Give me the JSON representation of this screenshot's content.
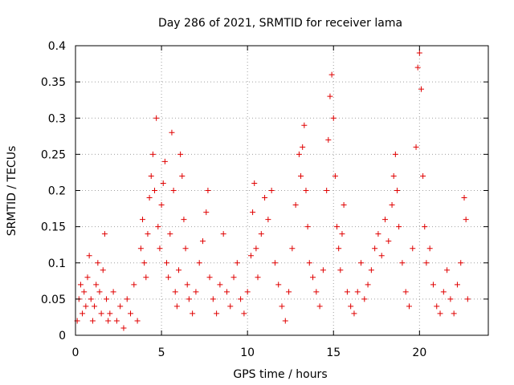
{
  "chart_data": {
    "type": "scatter",
    "title": "Day 286 of 2021, SRMTID for receiver lama",
    "xlabel": "GPS time / hours",
    "ylabel": "SRMTID / TECUs",
    "xlim": [
      0,
      24
    ],
    "ylim": [
      0,
      0.4
    ],
    "xticks": [
      0,
      5,
      10,
      15,
      20
    ],
    "xtick_labels": [
      "0",
      "5",
      "10",
      "15",
      "20"
    ],
    "yticks": [
      0,
      0.05,
      0.1,
      0.15,
      0.2,
      0.25,
      0.3,
      0.35,
      0.4
    ],
    "ytick_labels": [
      "0",
      "0.05",
      "0.1",
      "0.15",
      "0.2",
      "0.25",
      "0.3",
      "0.35",
      "0.4"
    ],
    "grid": true,
    "marker": "+",
    "color": "#e00000",
    "series": [
      {
        "name": "SRMTID",
        "points": [
          [
            0.1,
            0.02
          ],
          [
            0.2,
            0.05
          ],
          [
            0.3,
            0.07
          ],
          [
            0.4,
            0.03
          ],
          [
            0.5,
            0.06
          ],
          [
            0.6,
            0.04
          ],
          [
            0.7,
            0.08
          ],
          [
            0.8,
            0.11
          ],
          [
            0.9,
            0.05
          ],
          [
            1.0,
            0.02
          ],
          [
            1.1,
            0.04
          ],
          [
            1.2,
            0.07
          ],
          [
            1.3,
            0.1
          ],
          [
            1.4,
            0.06
          ],
          [
            1.5,
            0.03
          ],
          [
            1.6,
            0.09
          ],
          [
            1.7,
            0.14
          ],
          [
            1.8,
            0.05
          ],
          [
            1.9,
            0.02
          ],
          [
            2.0,
            0.03
          ],
          [
            2.2,
            0.06
          ],
          [
            2.4,
            0.02
          ],
          [
            2.6,
            0.04
          ],
          [
            2.8,
            0.01
          ],
          [
            3.0,
            0.05
          ],
          [
            3.2,
            0.03
          ],
          [
            3.4,
            0.07
          ],
          [
            3.6,
            0.02
          ],
          [
            3.8,
            0.12
          ],
          [
            3.9,
            0.16
          ],
          [
            4.0,
            0.1
          ],
          [
            4.1,
            0.08
          ],
          [
            4.2,
            0.14
          ],
          [
            4.3,
            0.19
          ],
          [
            4.4,
            0.22
          ],
          [
            4.5,
            0.25
          ],
          [
            4.6,
            0.2
          ],
          [
            4.7,
            0.3
          ],
          [
            4.8,
            0.15
          ],
          [
            4.9,
            0.12
          ],
          [
            5.0,
            0.18
          ],
          [
            5.1,
            0.21
          ],
          [
            5.2,
            0.24
          ],
          [
            5.3,
            0.1
          ],
          [
            5.4,
            0.08
          ],
          [
            5.5,
            0.14
          ],
          [
            5.6,
            0.28
          ],
          [
            5.7,
            0.2
          ],
          [
            5.8,
            0.06
          ],
          [
            5.9,
            0.04
          ],
          [
            6.0,
            0.09
          ],
          [
            6.1,
            0.25
          ],
          [
            6.2,
            0.22
          ],
          [
            6.3,
            0.16
          ],
          [
            6.4,
            0.12
          ],
          [
            6.5,
            0.07
          ],
          [
            6.6,
            0.05
          ],
          [
            6.8,
            0.03
          ],
          [
            7.0,
            0.06
          ],
          [
            7.2,
            0.1
          ],
          [
            7.4,
            0.13
          ],
          [
            7.6,
            0.17
          ],
          [
            7.7,
            0.2
          ],
          [
            7.8,
            0.08
          ],
          [
            8.0,
            0.05
          ],
          [
            8.2,
            0.03
          ],
          [
            8.4,
            0.07
          ],
          [
            8.6,
            0.14
          ],
          [
            8.8,
            0.06
          ],
          [
            9.0,
            0.04
          ],
          [
            9.2,
            0.08
          ],
          [
            9.4,
            0.1
          ],
          [
            9.6,
            0.05
          ],
          [
            9.8,
            0.03
          ],
          [
            10.0,
            0.06
          ],
          [
            10.2,
            0.11
          ],
          [
            10.3,
            0.17
          ],
          [
            10.4,
            0.21
          ],
          [
            10.5,
            0.12
          ],
          [
            10.6,
            0.08
          ],
          [
            10.8,
            0.14
          ],
          [
            11.0,
            0.19
          ],
          [
            11.2,
            0.16
          ],
          [
            11.4,
            0.2
          ],
          [
            11.6,
            0.1
          ],
          [
            11.8,
            0.07
          ],
          [
            12.0,
            0.04
          ],
          [
            12.2,
            0.02
          ],
          [
            12.4,
            0.06
          ],
          [
            12.6,
            0.12
          ],
          [
            12.8,
            0.18
          ],
          [
            13.0,
            0.25
          ],
          [
            13.1,
            0.22
          ],
          [
            13.2,
            0.26
          ],
          [
            13.3,
            0.29
          ],
          [
            13.4,
            0.2
          ],
          [
            13.5,
            0.15
          ],
          [
            13.6,
            0.1
          ],
          [
            13.8,
            0.08
          ],
          [
            14.0,
            0.06
          ],
          [
            14.2,
            0.04
          ],
          [
            14.4,
            0.09
          ],
          [
            14.6,
            0.2
          ],
          [
            14.7,
            0.27
          ],
          [
            14.8,
            0.33
          ],
          [
            14.9,
            0.36
          ],
          [
            15.0,
            0.3
          ],
          [
            15.1,
            0.22
          ],
          [
            15.2,
            0.15
          ],
          [
            15.3,
            0.12
          ],
          [
            15.4,
            0.09
          ],
          [
            15.5,
            0.14
          ],
          [
            15.6,
            0.18
          ],
          [
            15.8,
            0.06
          ],
          [
            16.0,
            0.04
          ],
          [
            16.2,
            0.03
          ],
          [
            16.4,
            0.06
          ],
          [
            16.6,
            0.1
          ],
          [
            16.8,
            0.05
          ],
          [
            17.0,
            0.07
          ],
          [
            17.2,
            0.09
          ],
          [
            17.4,
            0.12
          ],
          [
            17.6,
            0.14
          ],
          [
            17.8,
            0.11
          ],
          [
            18.0,
            0.16
          ],
          [
            18.2,
            0.13
          ],
          [
            18.4,
            0.18
          ],
          [
            18.5,
            0.22
          ],
          [
            18.6,
            0.25
          ],
          [
            18.7,
            0.2
          ],
          [
            18.8,
            0.15
          ],
          [
            19.0,
            0.1
          ],
          [
            19.2,
            0.06
          ],
          [
            19.4,
            0.04
          ],
          [
            19.6,
            0.12
          ],
          [
            19.8,
            0.26
          ],
          [
            19.9,
            0.37
          ],
          [
            20.0,
            0.39
          ],
          [
            20.1,
            0.34
          ],
          [
            20.2,
            0.22
          ],
          [
            20.3,
            0.15
          ],
          [
            20.4,
            0.1
          ],
          [
            20.6,
            0.12
          ],
          [
            20.8,
            0.07
          ],
          [
            21.0,
            0.04
          ],
          [
            21.2,
            0.03
          ],
          [
            21.4,
            0.06
          ],
          [
            21.6,
            0.09
          ],
          [
            21.8,
            0.05
          ],
          [
            22.0,
            0.03
          ],
          [
            22.2,
            0.07
          ],
          [
            22.4,
            0.1
          ],
          [
            22.6,
            0.19
          ],
          [
            22.7,
            0.16
          ],
          [
            22.8,
            0.05
          ]
        ]
      }
    ]
  }
}
